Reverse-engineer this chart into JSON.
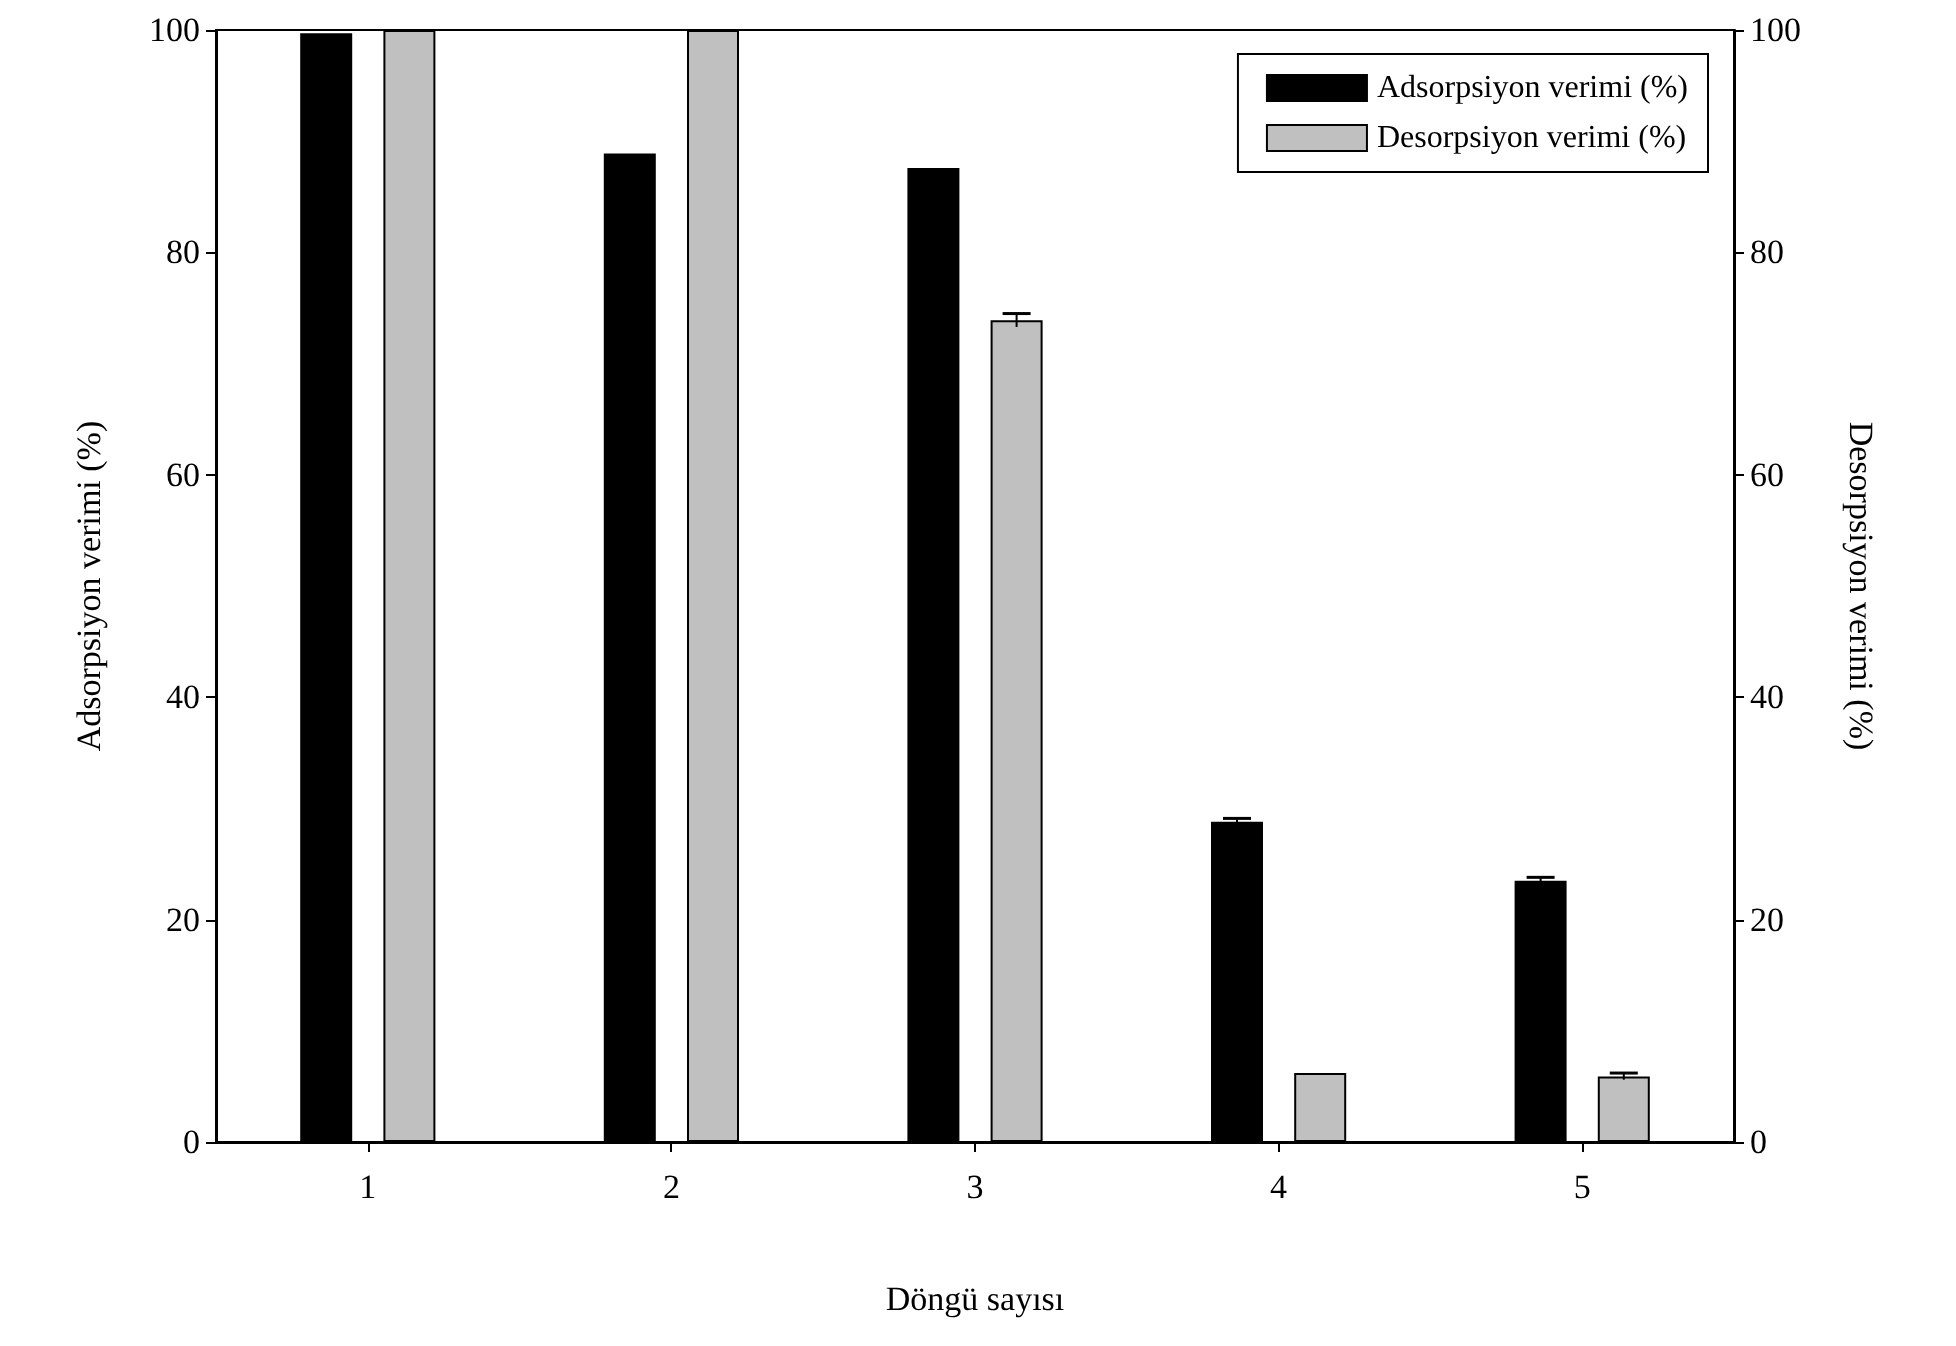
{
  "chart_data": {
    "type": "bar",
    "xlabel": "Döngü sayısı",
    "ylabel": "Adsorpsiyon verimi (%)",
    "y2label": "Desorpsiyon verimi (%)",
    "categories": [
      "1",
      "2",
      "3",
      "4",
      "5"
    ],
    "series": [
      {
        "name": "Adsorpsiyon verimi (%)",
        "color": "#000000",
        "values": [
          99.7,
          88.9,
          87.6,
          28.8,
          23.5
        ],
        "errors": [
          null,
          null,
          null,
          0.3,
          0.3
        ]
      },
      {
        "name": "Desorpsiyon verimi (%)",
        "color": "#c0c0c0",
        "axis": "y2",
        "values": [
          100,
          100,
          73.9,
          6.2,
          5.9
        ],
        "errors": [
          null,
          null,
          0.6,
          null,
          0.3
        ]
      }
    ],
    "ylim": [
      0,
      100
    ],
    "yticks": [
      0,
      20,
      40,
      60,
      80,
      100
    ],
    "y2lim": [
      0,
      100
    ],
    "y2ticks": [
      0,
      20,
      40,
      60,
      80,
      100
    ],
    "legend": "top right",
    "grid": false
  }
}
